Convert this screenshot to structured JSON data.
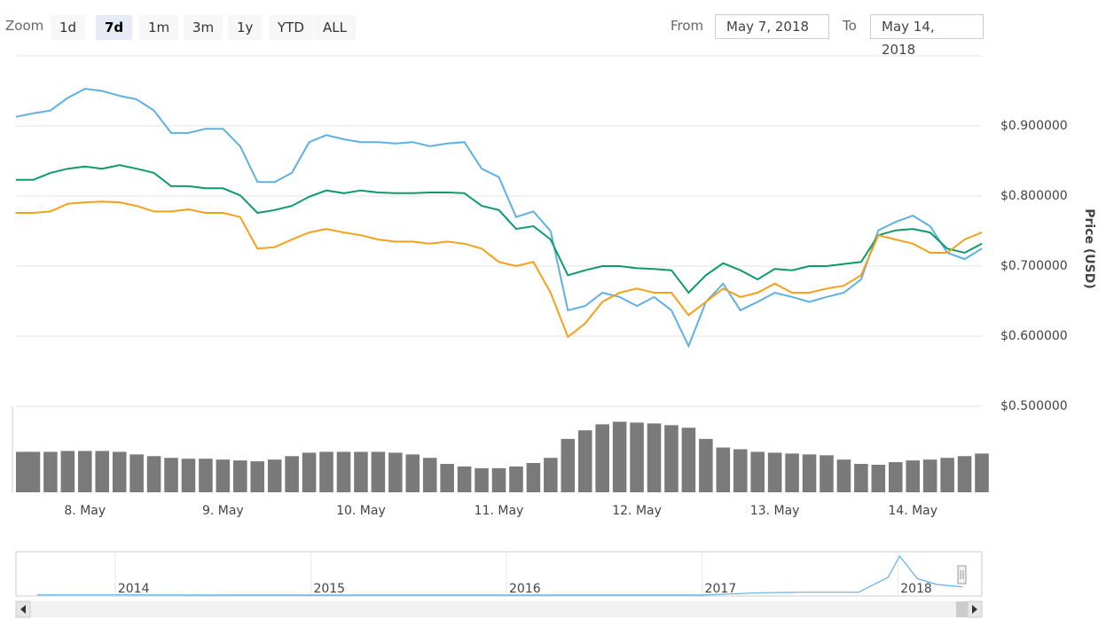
{
  "zoom": {
    "label": "Zoom",
    "buttons": [
      "1d",
      "7d",
      "1m",
      "3m",
      "1y",
      "YTD",
      "ALL"
    ],
    "selected": 1
  },
  "range": {
    "from_label": "From",
    "from": "May 7, 2018",
    "to_label": "To",
    "to": "May 14, 2018"
  },
  "chart_data": [
    {
      "type": "line",
      "categories": [
        null,
        null,
        null,
        null,
        "8. May",
        null,
        null,
        null,
        null,
        null,
        null,
        null,
        "9. May",
        null,
        null,
        null,
        null,
        null,
        null,
        null,
        "10. May",
        null,
        null,
        null,
        null,
        null,
        null,
        null,
        "11. May",
        null,
        null,
        null,
        null,
        null,
        null,
        null,
        "12. May",
        null,
        null,
        null,
        null,
        null,
        null,
        null,
        "13. May",
        null,
        null,
        null,
        null,
        null,
        null,
        null,
        "14. May",
        null,
        null,
        null,
        null
      ],
      "ylim": [
        0.5,
        1.0
      ],
      "yticks": [
        {
          "value": 0.5,
          "label": "$0.500000"
        },
        {
          "value": 0.6,
          "label": "$0.600000"
        },
        {
          "value": 0.7,
          "label": "$0.700000"
        },
        {
          "value": 0.8,
          "label": "$0.800000"
        },
        {
          "value": 0.9,
          "label": "$0.900000"
        }
      ],
      "y_axis_title": "Price (USD)",
      "y_axis_color": "#1c9a63",
      "grid": true,
      "y2lim": [
        0,
        100
      ],
      "series": [
        {
          "color": "#5eb1e2",
          "values": [
            0.913,
            0.918,
            0.922,
            0.94,
            0.953,
            0.95,
            0.943,
            0.938,
            0.922,
            0.89,
            0.89,
            0.896,
            0.896,
            0.871,
            0.82,
            0.82,
            0.833,
            0.877,
            0.887,
            0.881,
            0.877,
            0.877,
            0.875,
            0.877,
            0.871,
            0.875,
            0.877,
            0.839,
            0.827,
            0.77,
            0.778,
            0.75,
            0.637,
            0.643,
            0.662,
            0.656,
            0.643,
            0.656,
            0.637,
            0.586,
            0.649,
            0.675,
            0.637,
            0.649,
            0.662,
            0.656,
            0.649,
            0.656,
            0.662,
            0.681,
            0.751,
            0.763,
            0.772,
            0.757,
            0.719,
            0.71,
            0.725
          ]
        },
        {
          "color": "#0e9a6a",
          "values": [
            0.823,
            0.823,
            0.833,
            0.839,
            0.842,
            0.839,
            0.844,
            0.839,
            0.833,
            0.814,
            0.814,
            0.811,
            0.811,
            0.801,
            0.776,
            0.78,
            0.786,
            0.799,
            0.808,
            0.804,
            0.808,
            0.805,
            0.804,
            0.804,
            0.805,
            0.805,
            0.804,
            0.786,
            0.78,
            0.753,
            0.757,
            0.738,
            0.687,
            0.694,
            0.7,
            0.7,
            0.697,
            0.696,
            0.694,
            0.662,
            0.687,
            0.704,
            0.694,
            0.681,
            0.696,
            0.694,
            0.7,
            0.7,
            0.703,
            0.706,
            0.744,
            0.751,
            0.753,
            0.748,
            0.725,
            0.719,
            0.732
          ]
        },
        {
          "color": "#f5a01a",
          "values": [
            0.776,
            0.776,
            0.778,
            0.789,
            0.791,
            0.792,
            0.791,
            0.786,
            0.778,
            0.778,
            0.781,
            0.776,
            0.776,
            0.77,
            0.725,
            0.727,
            0.738,
            0.748,
            0.753,
            0.748,
            0.744,
            0.738,
            0.735,
            0.735,
            0.732,
            0.735,
            0.732,
            0.725,
            0.706,
            0.7,
            0.706,
            0.662,
            0.599,
            0.618,
            0.649,
            0.662,
            0.668,
            0.662,
            0.662,
            0.63,
            0.649,
            0.668,
            0.656,
            0.662,
            0.675,
            0.662,
            0.662,
            0.668,
            0.672,
            0.687,
            0.744,
            0.738,
            0.732,
            0.719,
            0.719,
            0.738,
            0.748
          ]
        },
        {
          "type": "bar",
          "axis": "y2",
          "color": "#7a7a7a",
          "values": [
            47,
            47,
            47,
            48,
            48,
            48,
            47,
            44,
            42,
            40,
            39,
            39,
            38,
            37,
            36,
            38,
            42,
            46,
            47,
            47,
            47,
            47,
            46,
            44,
            40,
            33,
            30,
            28,
            28,
            30,
            34,
            40,
            62,
            72,
            79,
            82,
            81,
            80,
            78,
            75,
            62,
            52,
            50,
            47,
            46,
            45,
            44,
            43,
            38,
            33,
            32,
            35,
            37,
            38,
            40,
            42,
            45
          ]
        }
      ]
    },
    {
      "type": "line",
      "x": [
        2013.6,
        2014,
        2014.5,
        2015,
        2016,
        2017,
        2017.3,
        2017.5,
        2017.8,
        2017.95,
        2018.01,
        2018.1,
        2018.2,
        2018.3,
        2018.33
      ],
      "values": [
        0.02,
        0.02,
        0.01,
        0.01,
        0.01,
        0.01,
        0.2,
        0.25,
        0.25,
        1.5,
        3.3,
        1.4,
        0.9,
        0.75,
        0.7
      ],
      "xlim": [
        2013.57,
        2018.33
      ],
      "xticks": [
        2014,
        2015,
        2016,
        2017,
        2018
      ],
      "ylim": [
        0,
        3.6
      ],
      "color": "#5eb1e2"
    }
  ]
}
